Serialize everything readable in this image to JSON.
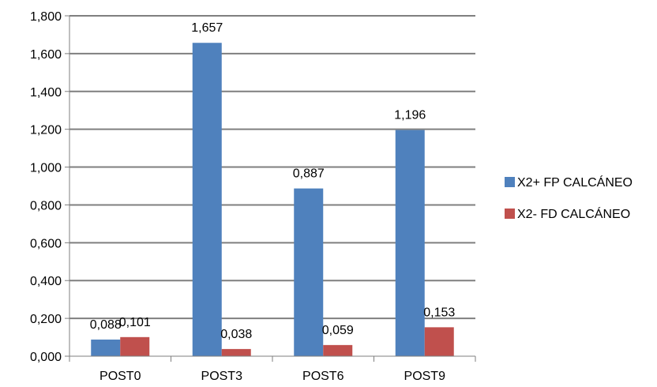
{
  "chart_data": {
    "type": "bar",
    "categories": [
      "POST0",
      "POST3",
      "POST6",
      "POST9"
    ],
    "series": [
      {
        "name": "X2+ FP CALCÁNEO",
        "color": "#4f81bd",
        "values": [
          0.088,
          1.657,
          0.887,
          1.196
        ],
        "labels": [
          "0,088",
          "1,657",
          "0,887",
          "1,196"
        ]
      },
      {
        "name": "X2- FD CALCÁNEO",
        "color": "#c0504d",
        "values": [
          0.101,
          0.038,
          0.059,
          0.153
        ],
        "labels": [
          "0,101",
          "0,038",
          "0,059",
          "0,153"
        ]
      }
    ],
    "ylim": [
      0,
      1.8
    ],
    "yticks": [
      0,
      0.2,
      0.4,
      0.6,
      0.8,
      1.0,
      1.2,
      1.4,
      1.6,
      1.8
    ],
    "ytick_labels": [
      "0,000",
      "0,200",
      "0,400",
      "0,600",
      "0,800",
      "1,000",
      "1,200",
      "1,400",
      "1,600",
      "1,800"
    ],
    "grid": true,
    "legend_position": "right"
  }
}
